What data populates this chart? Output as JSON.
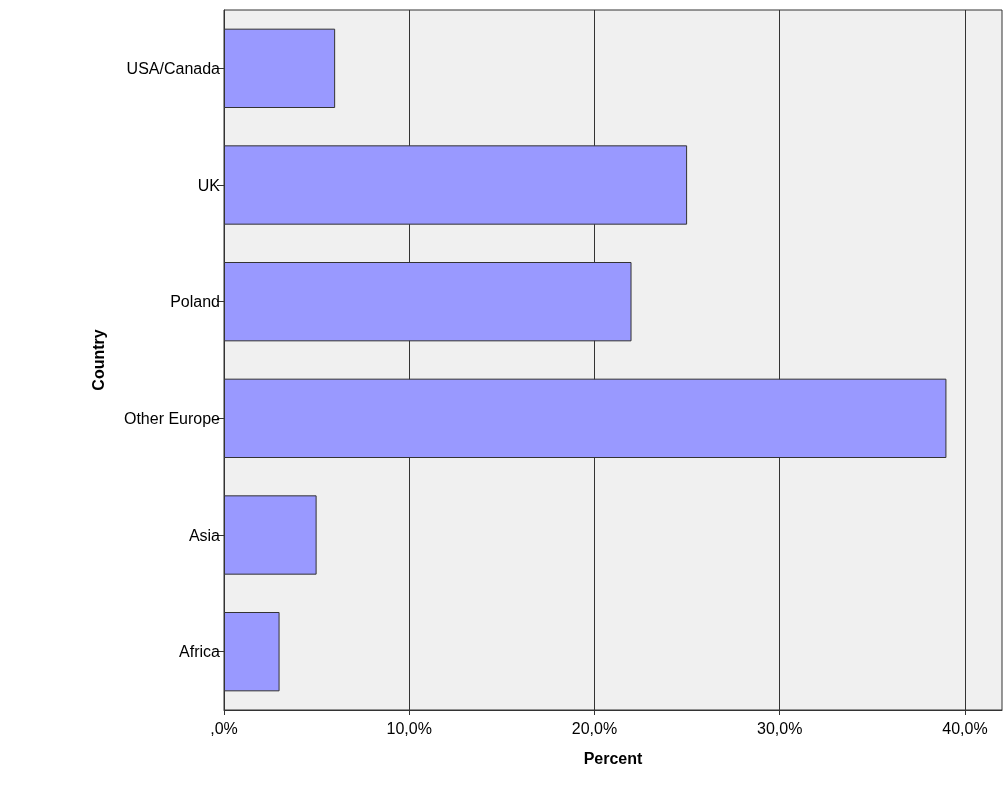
{
  "chart_data": {
    "type": "bar",
    "orientation": "horizontal",
    "xlabel": "Percent",
    "ylabel": "Country",
    "categories": [
      "USA/Canada",
      "UK",
      "Poland",
      "Other Europe",
      "Asia",
      "Africa"
    ],
    "values": [
      6,
      25,
      22,
      39,
      5,
      3
    ],
    "color": "#9999ff",
    "xlim": [
      0,
      42
    ],
    "xticks": [
      {
        "value": 0,
        "label": ",0%"
      },
      {
        "value": 10,
        "label": "10,0%"
      },
      {
        "value": 20,
        "label": "20,0%"
      },
      {
        "value": 30,
        "label": "30,0%"
      },
      {
        "value": 40,
        "label": "40,0%"
      }
    ],
    "grid": "x"
  }
}
